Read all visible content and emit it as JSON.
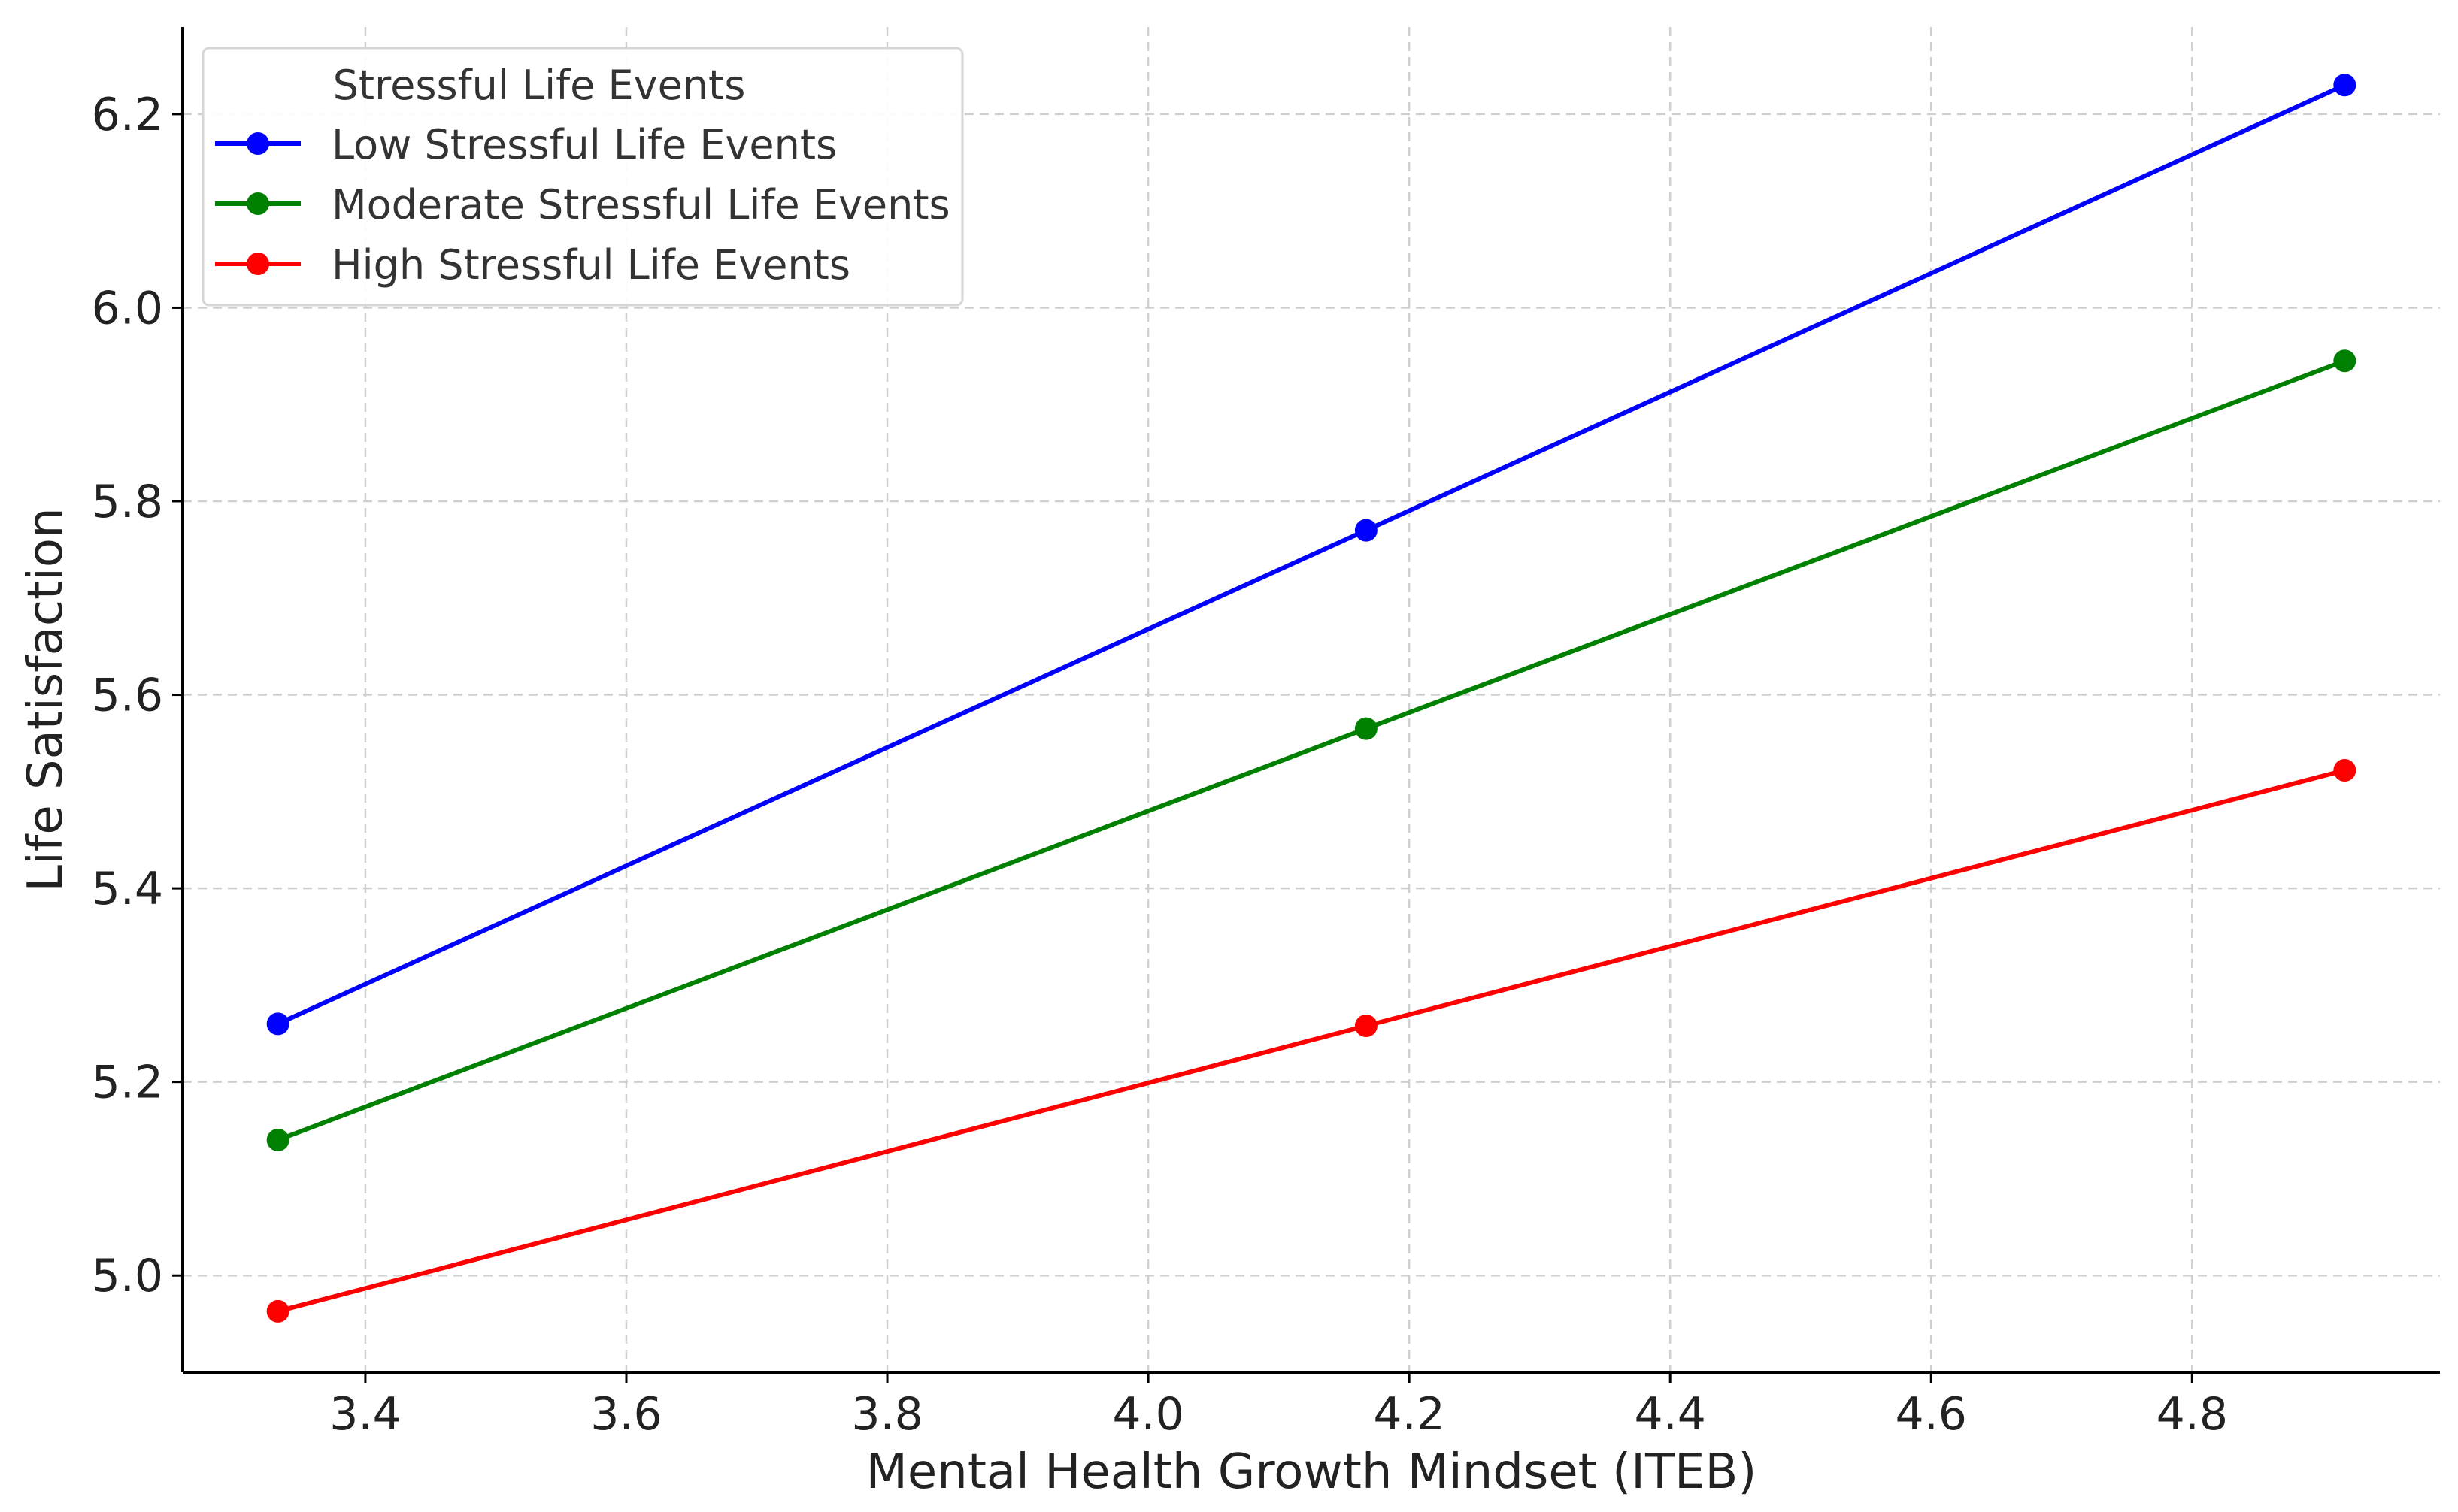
{
  "chart_data": {
    "type": "line",
    "title": "",
    "xlabel": "Mental Health Growth Mindset (ITEB)",
    "ylabel": "Life Satisfaction",
    "xlim": [
      3.26,
      4.99
    ],
    "ylim": [
      4.9,
      6.29
    ],
    "x_ticks": [
      3.4,
      3.6,
      3.8,
      4.0,
      4.2,
      4.4,
      4.6,
      4.8
    ],
    "x_tick_labels": [
      "3.4",
      "3.6",
      "3.8",
      "4.0",
      "4.2",
      "4.4",
      "4.6",
      "4.8"
    ],
    "y_ticks": [
      5.0,
      5.2,
      5.4,
      5.6,
      5.8,
      6.0,
      6.2
    ],
    "y_tick_labels": [
      "5.0",
      "5.2",
      "5.4",
      "5.6",
      "5.8",
      "6.0",
      "6.2"
    ],
    "grid": true,
    "legend": {
      "title": "Stressful Life Events",
      "placement": "top-left"
    },
    "x": [
      3.333,
      4.167,
      4.917
    ],
    "series": [
      {
        "name": "Low Stressful Life Events",
        "color": "#0000ff",
        "values": [
          5.26,
          5.77,
          6.23
        ]
      },
      {
        "name": "Moderate Stressful Life Events",
        "color": "#008000",
        "values": [
          5.14,
          5.565,
          5.945
        ]
      },
      {
        "name": "High Stressful Life Events",
        "color": "#ff0000",
        "values": [
          4.963,
          5.258,
          5.522
        ]
      }
    ]
  }
}
